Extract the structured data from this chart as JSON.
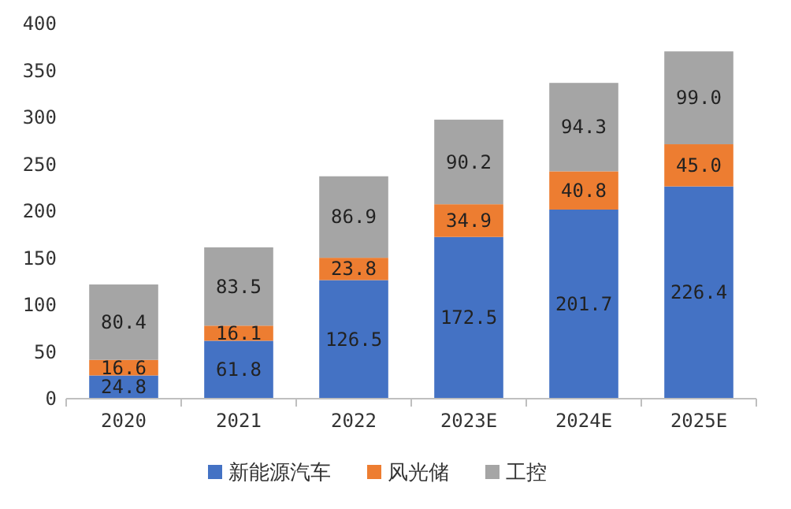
{
  "chart_data": {
    "type": "bar",
    "stacked": true,
    "categories": [
      "2020",
      "2021",
      "2022",
      "2023E",
      "2024E",
      "2025E"
    ],
    "series": [
      {
        "name": "新能源汽车",
        "color": "#4472c4",
        "values": [
          24.8,
          61.8,
          126.5,
          172.5,
          201.7,
          226.4
        ],
        "value_labels": [
          "24.8",
          "61.8",
          "126.5",
          "172.5",
          "201.7",
          "226.4"
        ]
      },
      {
        "name": "风光储",
        "color": "#ed7d31",
        "values": [
          16.6,
          16.1,
          23.8,
          34.9,
          40.8,
          45.0
        ],
        "value_labels": [
          "16.6",
          "16.1",
          "23.8",
          "34.9",
          "40.8",
          "45.0"
        ]
      },
      {
        "name": "工控",
        "color": "#a5a5a5",
        "values": [
          80.4,
          83.5,
          86.9,
          90.2,
          94.3,
          99.0
        ],
        "value_labels": [
          "80.4",
          "83.5",
          "86.9",
          "90.2",
          "94.3",
          "99.0"
        ]
      }
    ],
    "ylim": [
      0,
      400
    ],
    "yticks": [
      0,
      50,
      100,
      150,
      200,
      250,
      300,
      350,
      400
    ],
    "grid": false,
    "legend": "bottom"
  }
}
